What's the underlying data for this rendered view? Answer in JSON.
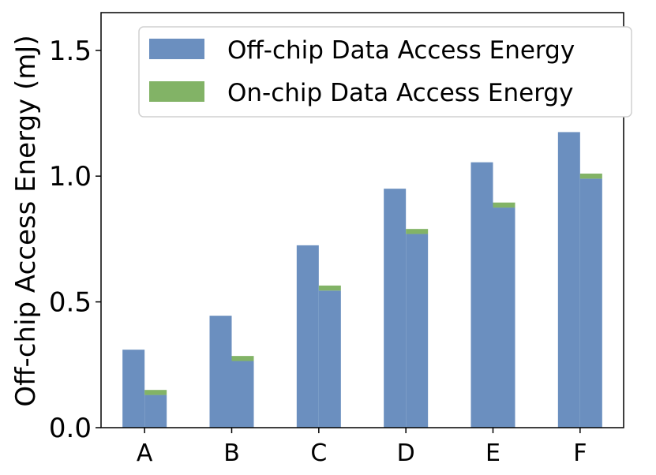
{
  "chart_data": {
    "type": "bar",
    "stacked_second_bar": true,
    "categories": [
      "A",
      "B",
      "C",
      "D",
      "E",
      "F"
    ],
    "ylabel": "Off-chip Access Energy (mJ)",
    "xlabel": "",
    "ylim": [
      0,
      1.65
    ],
    "yticks": [
      "0.0",
      "0.5",
      "1.0",
      "1.5"
    ],
    "ytick_values": [
      0,
      0.5,
      1.0,
      1.5
    ],
    "grid": false,
    "legend_position": "top-right",
    "series": [
      {
        "name": "Off-chip Data Access Energy",
        "color": "#6b8fbf",
        "values_bar1": [
          0.31,
          0.445,
          0.725,
          0.95,
          1.055,
          1.175
        ],
        "values_bar2": [
          0.13,
          0.265,
          0.545,
          0.77,
          0.875,
          0.99
        ]
      },
      {
        "name": "On-chip Data Access Energy",
        "color": "#82b366",
        "values_bar2": [
          0.02,
          0.02,
          0.02,
          0.02,
          0.02,
          0.02
        ]
      }
    ]
  }
}
